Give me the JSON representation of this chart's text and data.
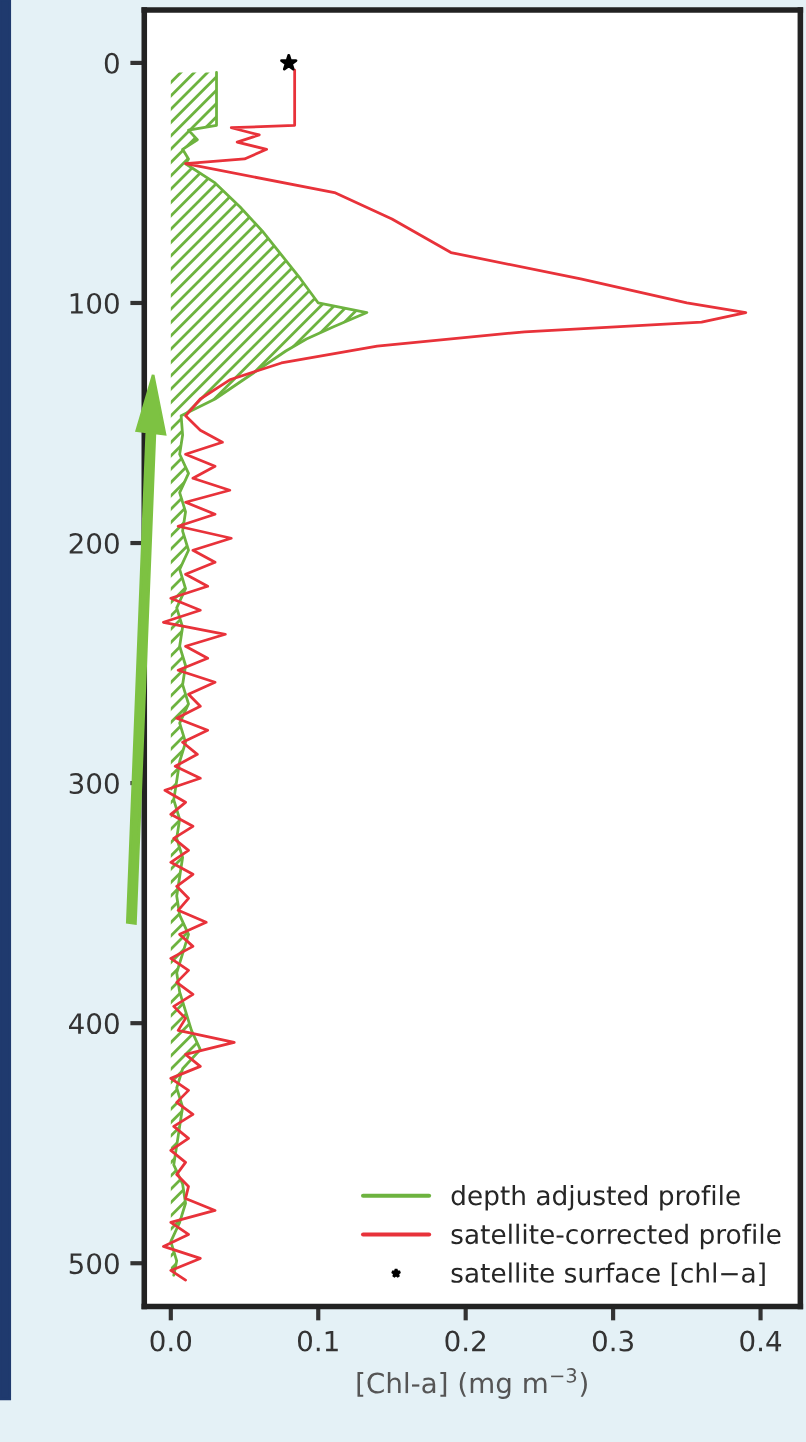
{
  "chart_data": {
    "type": "line",
    "orientation": "horizontal",
    "xlabel": "[Chl-a] (mg m$^{−3}$)",
    "xlim": [
      -0.018,
      0.427
    ],
    "xticks": [
      {
        "value": 0,
        "label": "0.0"
      },
      0.1,
      0.2,
      0.3,
      0.4
    ],
    "ylim": [
      518,
      -22
    ],
    "yticks": [
      0,
      100,
      200,
      300,
      400,
      500
    ],
    "legend": "bottom right",
    "grid": false,
    "series": [
      {
        "name": "depth adjusted profile",
        "type": "area",
        "color": "#6db33f",
        "x": [
          4,
          26,
          28,
          32,
          36,
          40,
          42,
          50,
          60,
          70,
          80,
          90,
          100,
          104,
          110,
          115,
          120,
          130,
          140,
          147,
          155,
          163,
          171,
          179,
          187,
          195,
          203,
          211,
          219,
          227,
          235,
          243,
          251,
          259,
          267,
          275,
          283,
          291,
          299,
          307,
          315,
          323,
          331,
          339,
          347,
          355,
          363,
          371,
          379,
          387,
          395,
          403,
          411,
          419,
          427,
          435,
          443,
          451,
          459,
          467,
          475,
          483,
          491,
          499,
          505
        ],
        "values": [
          0.031,
          0.031,
          0.012,
          0.018,
          0.008,
          0.012,
          0.01,
          0.03,
          0.047,
          0.062,
          0.075,
          0.088,
          0.1,
          0.133,
          0.11,
          0.092,
          0.078,
          0.054,
          0.03,
          0.007,
          0.008,
          0.006,
          0.012,
          0.006,
          0.01,
          0.008,
          0.012,
          0.006,
          0.01,
          0.004,
          0.008,
          0.006,
          0.01,
          0.008,
          0.012,
          0.006,
          0.01,
          0.006,
          0.004,
          0.002,
          0.006,
          0.004,
          0.008,
          0.006,
          0.004,
          0.006,
          0.012,
          0.008,
          0.004,
          0.006,
          0.01,
          0.014,
          0.02,
          0.008,
          0.004,
          0.008,
          0.006,
          0.004,
          0.002,
          0.008,
          0.01,
          0.006,
          0.0,
          0.004,
          0.002
        ]
      },
      {
        "name": "satellite-corrected profile",
        "color": "#e8323a",
        "x": [
          3,
          26,
          27,
          30,
          33,
          36,
          40,
          42,
          54,
          65,
          79,
          90,
          100,
          104,
          108,
          112,
          118,
          125,
          132,
          140,
          147,
          153,
          158,
          163,
          168,
          173,
          178,
          183,
          188,
          193,
          198,
          203,
          208,
          213,
          218,
          223,
          228,
          233,
          238,
          243,
          248,
          253,
          258,
          263,
          268,
          273,
          278,
          283,
          288,
          293,
          298,
          303,
          308,
          313,
          318,
          323,
          328,
          333,
          338,
          343,
          348,
          353,
          358,
          363,
          368,
          373,
          378,
          383,
          388,
          393,
          398,
          403,
          408,
          413,
          418,
          423,
          428,
          433,
          438,
          443,
          448,
          453,
          458,
          463,
          468,
          473,
          478,
          483,
          488,
          493,
          498,
          503,
          507
        ],
        "values": [
          0.084,
          0.084,
          0.041,
          0.06,
          0.045,
          0.065,
          0.05,
          0.01,
          0.111,
          0.15,
          0.19,
          0.278,
          0.35,
          0.39,
          0.36,
          0.24,
          0.14,
          0.075,
          0.04,
          0.02,
          0.01,
          0.02,
          0.035,
          0.01,
          0.03,
          0.015,
          0.04,
          0.01,
          0.03,
          0.005,
          0.041,
          0.015,
          0.03,
          0.01,
          0.025,
          0.0,
          0.02,
          -0.005,
          0.037,
          0.01,
          0.025,
          0.005,
          0.03,
          0.012,
          0.02,
          0.004,
          0.025,
          0.008,
          0.018,
          0.003,
          0.02,
          -0.004,
          0.01,
          0.0,
          0.015,
          0.002,
          0.012,
          0.0,
          0.015,
          0.004,
          0.012,
          0.005,
          0.024,
          0.006,
          0.015,
          0.0,
          0.012,
          0.004,
          0.015,
          0.002,
          0.01,
          0.005,
          0.043,
          0.01,
          0.02,
          0.0,
          0.012,
          0.004,
          0.015,
          0.002,
          0.012,
          0.0,
          0.01,
          0.004,
          0.012,
          0.01,
          0.03,
          0.0,
          0.012,
          -0.005,
          0.02,
          0.0,
          0.01
        ]
      },
      {
        "name": "satellite surface [chl−a]",
        "type": "scatter",
        "color": "#000000",
        "marker": "star",
        "x": [
          0
        ],
        "values": [
          0.08
        ]
      }
    ]
  }
}
